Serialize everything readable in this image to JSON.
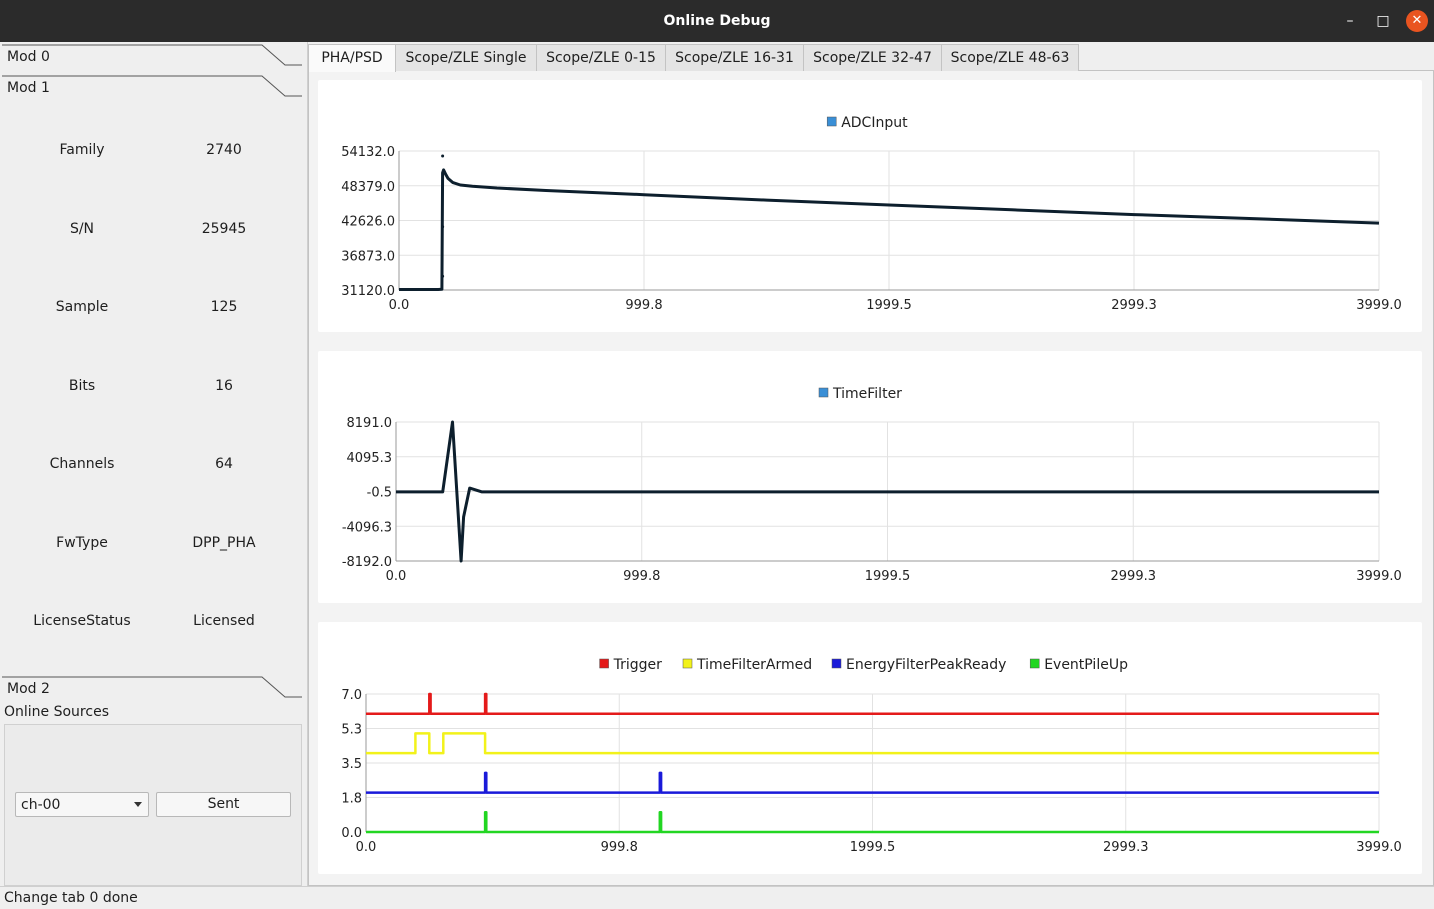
{
  "window": {
    "title": "Online Debug",
    "controls": {
      "minimize": "–",
      "maximize": "□",
      "close": "✕"
    }
  },
  "left_panel": {
    "mod0": {
      "label": "Mod 0"
    },
    "mod1": {
      "label": "Mod 1",
      "info": [
        {
          "key": "Family",
          "value": "2740"
        },
        {
          "key": "S/N",
          "value": "25945"
        },
        {
          "key": "Sample",
          "value": "125"
        },
        {
          "key": "Bits",
          "value": "16"
        },
        {
          "key": "Channels",
          "value": "64"
        },
        {
          "key": "FwType",
          "value": "DPP_PHA"
        },
        {
          "key": "LicenseStatus",
          "value": "Licensed"
        }
      ]
    },
    "mod2": {
      "label": "Mod 2"
    },
    "online_sources": {
      "label": "Online Sources",
      "channel_selected": "ch-00",
      "send_button": "Sent"
    }
  },
  "tabs": [
    {
      "label": "PHA/PSD",
      "active": true
    },
    {
      "label": "Scope/ZLE Single",
      "active": false
    },
    {
      "label": "Scope/ZLE 0-15",
      "active": false
    },
    {
      "label": "Scope/ZLE 16-31",
      "active": false
    },
    {
      "label": "Scope/ZLE 32-47",
      "active": false
    },
    {
      "label": "Scope/ZLE 48-63",
      "active": false
    }
  ],
  "colors": {
    "trace": "#0d1f2d",
    "trigger": "#e41a1a",
    "time_filter_armed": "#f2f21a",
    "energy_peak_ready": "#1a1ad9",
    "event_pileup": "#22d622",
    "legend_square": "#3a8fd6"
  },
  "chart_data": [
    {
      "type": "scatter",
      "title": "",
      "legend": [
        "ADCInput"
      ],
      "x_ticks": [
        "0.0",
        "999.8",
        "1999.5",
        "2999.3",
        "3999.0"
      ],
      "y_ticks": [
        "54132.0",
        "48379.0",
        "42626.0",
        "36873.0",
        "31120.0"
      ],
      "xlim": [
        0,
        3999
      ],
      "ylim": [
        31120,
        54132
      ],
      "grid": true,
      "series": [
        {
          "name": "ADCInput",
          "x": [
            0,
            100,
            160,
            175,
            178,
            182,
            190,
            200,
            220,
            250,
            300,
            400,
            600,
            1000,
            1500,
            2000,
            2500,
            3000,
            3500,
            3999
          ],
          "y": [
            31200,
            31200,
            31200,
            31250,
            50500,
            51000,
            50300,
            49600,
            48900,
            48500,
            48300,
            48000,
            47600,
            46900,
            46000,
            45200,
            44400,
            43600,
            42900,
            42200
          ]
        },
        {
          "name": "ADCInput-outliers",
          "x": [
            178,
            178,
            178
          ],
          "y": [
            53300,
            41600,
            33400
          ]
        }
      ]
    },
    {
      "type": "line",
      "title": "",
      "legend": [
        "TimeFilter"
      ],
      "x_ticks": [
        "0.0",
        "999.8",
        "1999.5",
        "2999.3",
        "3999.0"
      ],
      "y_ticks": [
        "8191.0",
        "4095.3",
        "-0.5",
        "-4096.3",
        "-8192.0"
      ],
      "xlim": [
        0,
        3999
      ],
      "ylim": [
        -8192,
        8191
      ],
      "grid": true,
      "series": [
        {
          "name": "TimeFilter",
          "x": [
            0,
            190,
            230,
            265,
            275,
            300,
            350,
            500,
            3999
          ],
          "y": [
            -50,
            -50,
            8191,
            -8192,
            -3000,
            400,
            -50,
            -50,
            -50
          ]
        }
      ]
    },
    {
      "type": "line",
      "title": "",
      "legend": [
        "Trigger",
        "TimeFilterArmed",
        "EnergyFilterPeakReady",
        "EventPileUp"
      ],
      "x_ticks": [
        "0.0",
        "999.8",
        "1999.5",
        "2999.3",
        "3999.0"
      ],
      "y_ticks": [
        "7.0",
        "5.3",
        "3.5",
        "1.8",
        "0.0"
      ],
      "xlim": [
        0,
        3999
      ],
      "ylim": [
        0,
        7
      ],
      "grid": true,
      "series": [
        {
          "name": "Trigger",
          "x": [
            0,
            250,
            250,
            255,
            255,
            470,
            470,
            475,
            475,
            3999
          ],
          "y": [
            6,
            6,
            7,
            7,
            6,
            6,
            7,
            7,
            6,
            6
          ]
        },
        {
          "name": "TimeFilterArmed",
          "x": [
            0,
            195,
            195,
            250,
            250,
            305,
            305,
            470,
            470,
            3999
          ],
          "y": [
            4,
            4,
            5,
            5,
            4,
            4,
            5,
            5,
            4,
            4
          ]
        },
        {
          "name": "EnergyFilterPeakReady",
          "x": [
            0,
            470,
            470,
            475,
            475,
            1160,
            1160,
            1165,
            1165,
            3999
          ],
          "y": [
            2,
            2,
            3,
            3,
            2,
            2,
            3,
            3,
            2,
            2
          ]
        },
        {
          "name": "EventPileUp",
          "x": [
            0,
            470,
            470,
            475,
            475,
            1160,
            1160,
            1165,
            1165,
            3999
          ],
          "y": [
            0,
            0,
            1,
            1,
            0,
            0,
            1,
            1,
            0,
            0
          ]
        }
      ]
    }
  ],
  "status_bar": {
    "text": "Change tab 0 done"
  }
}
